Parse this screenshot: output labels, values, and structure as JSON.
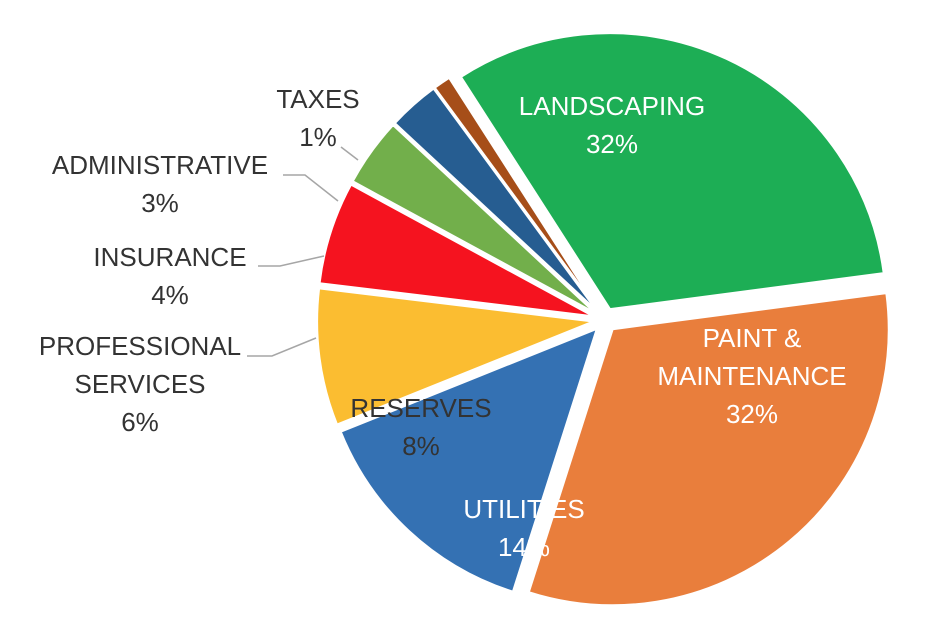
{
  "chart_data": {
    "type": "pie",
    "title": "",
    "slices": [
      {
        "label": "LANDSCAPING",
        "lines": [
          "LANDSCAPING"
        ],
        "value": 32,
        "pct_label": "32%",
        "color": "#1DAE55",
        "label_color": "#ffffff",
        "label_inside": true
      },
      {
        "label": "PAINT & MAINTENANCE",
        "lines": [
          "PAINT &",
          "MAINTENANCE"
        ],
        "value": 32,
        "pct_label": "32%",
        "color": "#E97E3C",
        "label_color": "#ffffff",
        "label_inside": true
      },
      {
        "label": "UTILITIES",
        "lines": [
          "UTILITIES"
        ],
        "value": 14,
        "pct_label": "14%",
        "color": "#3471B3",
        "label_color": "#ffffff",
        "label_inside": true
      },
      {
        "label": "RESERVES",
        "lines": [
          "RESERVES"
        ],
        "value": 8,
        "pct_label": "8%",
        "color": "#FBBD31",
        "label_color": "#333333",
        "label_inside": true
      },
      {
        "label": "PROFESSIONAL SERVICES",
        "lines": [
          "PROFESSIONAL",
          "SERVICES"
        ],
        "value": 6,
        "pct_label": "6%",
        "color": "#F5131F",
        "label_color": "#333333",
        "label_inside": false
      },
      {
        "label": "INSURANCE",
        "lines": [
          "INSURANCE"
        ],
        "value": 4,
        "pct_label": "4%",
        "color": "#72AF4B",
        "label_color": "#333333",
        "label_inside": false
      },
      {
        "label": "ADMINISTRATIVE",
        "lines": [
          "ADMINISTRATIVE"
        ],
        "value": 3,
        "pct_label": "3%",
        "color": "#265D91",
        "label_color": "#333333",
        "label_inside": false
      },
      {
        "label": "TAXES",
        "lines": [
          "TAXES"
        ],
        "value": 1,
        "pct_label": "1%",
        "color": "#A64E19",
        "label_color": "#333333",
        "label_inside": false
      }
    ],
    "legend": "none"
  }
}
